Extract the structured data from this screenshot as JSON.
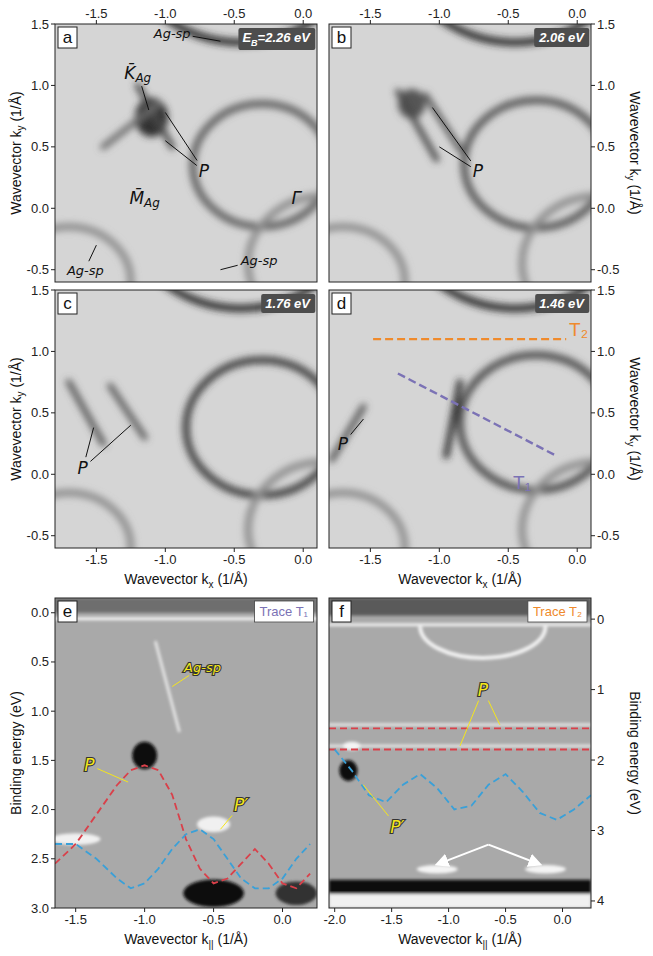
{
  "chart_data": [
    {
      "type": "map",
      "panel": "a",
      "energy_label": [
        "E",
        {
          "sub": "B"
        },
        "=2.26 eV"
      ],
      "xlim": [
        -1.8,
        0.1
      ],
      "ylim": [
        -0.6,
        1.5
      ],
      "xticks": [
        -1.5,
        {
          "value": -1.0,
          "label": "-1.0"
        },
        -0.5,
        {
          "value": 0.0,
          "label": "0.0"
        }
      ],
      "yticks": [
        -0.5,
        {
          "value": 0.0,
          "label": "0.0"
        },
        0.5,
        {
          "value": 1.0,
          "label": "1.0"
        },
        1.5
      ],
      "ylabel": [
        "Wavevector k",
        {
          "sub": "y"
        },
        " (1/Å)"
      ],
      "features": [
        {
          "shape": "circle",
          "cx": -0.3,
          "cy": 0.35,
          "r": 0.5,
          "color": "#5e5e5e"
        },
        {
          "shape": "circle",
          "cx": -0.45,
          "cy": 2.2,
          "r": 0.85,
          "color": "#262626"
        },
        {
          "shape": "circle",
          "cx": -1.7,
          "cy": -0.6,
          "r": 0.45,
          "color": "#8c8c8c"
        },
        {
          "shape": "circle",
          "cx": 0.15,
          "cy": -0.45,
          "r": 0.55,
          "color": "#8c8c8c"
        },
        {
          "shape": "blob",
          "cx": -1.1,
          "cy": 0.74,
          "rx": 0.12,
          "ry": 0.16,
          "color": "#333333"
        },
        {
          "shape": "line",
          "x1": -1.2,
          "y1": 1.0,
          "x2": -0.95,
          "y2": 0.5,
          "color": "#4a4a4a"
        },
        {
          "shape": "line",
          "x1": -1.45,
          "y1": 0.5,
          "x2": -1.05,
          "y2": 0.85,
          "color": "#6a6a6a"
        }
      ],
      "annotations": [
        {
          "text": [
            "Ag-sp"
          ],
          "at": [
            -0.95,
            1.43
          ],
          "to": [
            [
              -0.6,
              1.36
            ]
          ]
        },
        {
          "text": [
            "K̄",
            {
              "sub": "Ag"
            }
          ],
          "at": [
            -1.2,
            1.1
          ],
          "to": [
            [
              -1.12,
              0.8
            ]
          ]
        },
        {
          "text": [
            "P"
          ],
          "at": [
            -0.72,
            0.3
          ],
          "to": [
            [
              -1.0,
              0.78
            ],
            [
              -1.0,
              0.55
            ]
          ]
        },
        {
          "text": [
            "M̄",
            {
              "sub": "Ag"
            }
          ],
          "at": [
            -1.15,
            0.08
          ],
          "to": []
        },
        {
          "text": [
            "Γ̄"
          ],
          "at": [
            -0.05,
            0.08
          ],
          "to": []
        },
        {
          "text": [
            "Ag-sp"
          ],
          "at": [
            -1.58,
            -0.5
          ],
          "to": [
            [
              -1.5,
              -0.3
            ]
          ]
        },
        {
          "text": [
            "Ag-sp"
          ],
          "at": [
            -0.32,
            -0.42
          ],
          "to": [
            [
              -0.6,
              -0.5
            ]
          ]
        }
      ]
    },
    {
      "type": "map",
      "panel": "b",
      "energy_label": [
        "2.06 eV"
      ],
      "xlim": [
        -1.8,
        0.1
      ],
      "ylim": [
        -0.6,
        1.5
      ],
      "xticks": [
        -1.5,
        {
          "value": -1.0,
          "label": "-1.0"
        },
        -0.5,
        {
          "value": 0.0,
          "label": "0.0"
        }
      ],
      "yticks": [
        -0.5,
        {
          "value": 0.0,
          "label": "0.0"
        },
        0.5,
        {
          "value": 1.0,
          "label": "1.0"
        },
        1.5
      ],
      "ylabel": [
        "Wavevector k",
        {
          "sub": "y"
        },
        " (1/Å)"
      ],
      "features": [
        {
          "shape": "circle",
          "cx": -0.3,
          "cy": 0.36,
          "r": 0.52,
          "color": "#555555"
        },
        {
          "shape": "circle",
          "cx": -0.45,
          "cy": 2.2,
          "r": 0.85,
          "color": "#262626"
        },
        {
          "shape": "circle",
          "cx": -1.7,
          "cy": -0.6,
          "r": 0.45,
          "color": "#8c8c8c"
        },
        {
          "shape": "circle",
          "cx": 0.15,
          "cy": -0.45,
          "r": 0.55,
          "color": "#8c8c8c"
        },
        {
          "shape": "blob",
          "cx": -1.2,
          "cy": 0.85,
          "rx": 0.1,
          "ry": 0.12,
          "color": "#555555"
        },
        {
          "shape": "line",
          "x1": -1.3,
          "y1": 0.95,
          "x2": -1.02,
          "y2": 0.4,
          "color": "#4a4a4a"
        },
        {
          "shape": "line",
          "x1": -1.1,
          "y1": 0.92,
          "x2": -0.85,
          "y2": 0.48,
          "color": "#5a5a5a"
        }
      ],
      "annotations": [
        {
          "text": [
            "P"
          ],
          "at": [
            -0.72,
            0.3
          ],
          "to": [
            [
              -1.05,
              0.82
            ],
            [
              -1.0,
              0.5
            ]
          ]
        }
      ]
    },
    {
      "type": "map",
      "panel": "c",
      "energy_label": [
        "1.76 eV"
      ],
      "xlim": [
        -1.8,
        0.1
      ],
      "ylim": [
        -0.6,
        1.5
      ],
      "xticks": [
        -1.5,
        {
          "value": -1.0,
          "label": "-1.0"
        },
        -0.5,
        {
          "value": 0.0,
          "label": "0.0"
        }
      ],
      "yticks": [
        -0.5,
        {
          "value": 0.0,
          "label": "0.0"
        },
        0.5,
        {
          "value": 1.0,
          "label": "1.0"
        },
        1.5
      ],
      "xlabel": [
        "Wavevector k",
        {
          "sub": "x"
        },
        " (1/Å)"
      ],
      "ylabel": [
        "Wavevector k",
        {
          "sub": "y"
        },
        " (1/Å)"
      ],
      "features": [
        {
          "shape": "circle",
          "cx": -0.3,
          "cy": 0.38,
          "r": 0.55,
          "color": "#3a3a3a"
        },
        {
          "shape": "circle",
          "cx": -0.45,
          "cy": 2.2,
          "r": 0.85,
          "color": "#262626"
        },
        {
          "shape": "circle",
          "cx": -1.7,
          "cy": -0.6,
          "r": 0.45,
          "color": "#8c8c8c"
        },
        {
          "shape": "circle",
          "cx": 0.15,
          "cy": -0.45,
          "r": 0.55,
          "color": "#8c8c8c"
        },
        {
          "shape": "line",
          "x1": -1.7,
          "y1": 0.75,
          "x2": -1.45,
          "y2": 0.25,
          "color": "#555555"
        },
        {
          "shape": "line",
          "x1": -1.4,
          "y1": 0.72,
          "x2": -1.15,
          "y2": 0.3,
          "color": "#5a5a5a"
        }
      ],
      "annotations": [
        {
          "text": [
            "P"
          ],
          "at": [
            -1.6,
            0.05
          ],
          "to": [
            [
              -1.52,
              0.38
            ],
            [
              -1.25,
              0.4
            ]
          ]
        }
      ]
    },
    {
      "type": "map",
      "panel": "d",
      "energy_label": [
        "1.46 eV"
      ],
      "xlim": [
        -1.8,
        0.1
      ],
      "ylim": [
        -0.6,
        1.5
      ],
      "xticks": [
        -1.5,
        {
          "value": -1.0,
          "label": "-1.0"
        },
        -0.5,
        {
          "value": 0.0,
          "label": "0.0"
        }
      ],
      "yticks": [
        -0.5,
        {
          "value": 0.0,
          "label": "0.0"
        },
        0.5,
        {
          "value": 1.0,
          "label": "1.0"
        },
        1.5
      ],
      "xlabel": [
        "Wavevector k",
        {
          "sub": "x"
        },
        " (1/Å)"
      ],
      "ylabel": [
        "Wavevector k",
        {
          "sub": "y"
        },
        " (1/Å)"
      ],
      "features": [
        {
          "shape": "circle",
          "cx": -0.3,
          "cy": 0.42,
          "r": 0.55,
          "color": "#4a4a4a"
        },
        {
          "shape": "circle",
          "cx": -0.45,
          "cy": 2.2,
          "r": 0.85,
          "color": "#262626"
        },
        {
          "shape": "circle",
          "cx": -1.7,
          "cy": -0.6,
          "r": 0.45,
          "color": "#8c8c8c"
        },
        {
          "shape": "circle",
          "cx": 0.15,
          "cy": -0.45,
          "r": 0.55,
          "color": "#8c8c8c"
        },
        {
          "shape": "line",
          "x1": -1.78,
          "y1": 0.12,
          "x2": -1.55,
          "y2": 0.55,
          "color": "#555555"
        },
        {
          "shape": "line",
          "x1": -0.95,
          "y1": 0.15,
          "x2": -0.85,
          "y2": 0.75,
          "color": "#2a2a2a"
        }
      ],
      "traces": [
        {
          "label": "T₁",
          "color": "#7b72b5",
          "line_style": "dashed",
          "x": [
            -1.3,
            -0.15
          ],
          "y": [
            0.82,
            0.15
          ],
          "label_at": [
            -0.4,
            -0.07
          ]
        },
        {
          "label": "T₂",
          "color": "#ef8a2c",
          "line_style": "dashed",
          "x": [
            -1.48,
            -0.08
          ],
          "y": [
            1.1,
            1.1
          ],
          "label_at": [
            0.01,
            1.18
          ]
        }
      ],
      "annotations": [
        {
          "text": [
            "P"
          ],
          "at": [
            -1.7,
            0.25
          ],
          "to": [
            [
              -1.55,
              0.45
            ]
          ]
        }
      ]
    },
    {
      "type": "trace",
      "panel": "e",
      "title": "Trace T₁",
      "color": "#7b72b5",
      "xlim": [
        -1.65,
        0.25
      ],
      "ylim": [
        3.0,
        -0.15
      ],
      "xticks": [
        -1.5,
        {
          "value": -1.0,
          "label": "-1.0"
        },
        -0.5,
        {
          "value": 0.0,
          "label": "0.0"
        }
      ],
      "yticks": [
        {
          "value": 0.0,
          "label": "0.0"
        },
        0.5,
        {
          "value": 1.0,
          "label": "1.0"
        },
        1.5,
        {
          "value": 2.0,
          "label": "2.0"
        },
        2.5,
        {
          "value": 3.0,
          "label": "3.0"
        }
      ],
      "xlabel": [
        "Wavevector k",
        {
          "sub": "||"
        },
        " (1/Å)"
      ],
      "ylabel": [
        "Binding energy (eV)"
      ],
      "series": [
        {
          "color": "#d9404a",
          "line_style": "dashed",
          "x": [
            -1.65,
            -1.5,
            -1.35,
            -1.2,
            -1.1,
            -1.0,
            -0.9,
            -0.8,
            -0.7,
            -0.6,
            -0.5,
            -0.4,
            -0.3,
            -0.2,
            -0.1,
            0.0,
            0.1,
            0.2
          ],
          "values": [
            2.55,
            2.35,
            2.05,
            1.75,
            1.6,
            1.55,
            1.6,
            1.85,
            2.3,
            2.6,
            2.75,
            2.7,
            2.55,
            2.4,
            2.55,
            2.75,
            2.8,
            2.65
          ]
        },
        {
          "color": "#3aa0d8",
          "line_style": "dashed",
          "x": [
            -1.65,
            -1.5,
            -1.35,
            -1.2,
            -1.1,
            -1.0,
            -0.9,
            -0.8,
            -0.7,
            -0.6,
            -0.5,
            -0.4,
            -0.3,
            -0.2,
            -0.1,
            0.0,
            0.1,
            0.2
          ],
          "values": [
            2.35,
            2.35,
            2.5,
            2.7,
            2.8,
            2.75,
            2.6,
            2.4,
            2.25,
            2.2,
            2.3,
            2.5,
            2.7,
            2.8,
            2.8,
            2.7,
            2.5,
            2.35
          ]
        }
      ],
      "features": [
        {
          "shape": "rect",
          "x1": -1.65,
          "y1": -0.15,
          "x2": 0.25,
          "y2": 0.0,
          "color": "#6e6e6e"
        },
        {
          "shape": "line",
          "x1": -1.65,
          "y1": 0.06,
          "x2": 0.25,
          "y2": 0.06,
          "color": "#f4f4f4"
        },
        {
          "shape": "line",
          "x1": -0.92,
          "y1": 0.3,
          "x2": -0.75,
          "y2": 1.2,
          "color": "#e4e4e4"
        },
        {
          "shape": "blob",
          "cx": -1.0,
          "cy": 1.45,
          "rx": 0.09,
          "ry": 0.14,
          "color": "#0a0a0a"
        },
        {
          "shape": "blob",
          "cx": -0.5,
          "cy": 2.85,
          "rx": 0.22,
          "ry": 0.14,
          "color": "#111111"
        },
        {
          "shape": "blob",
          "cx": 0.1,
          "cy": 2.85,
          "rx": 0.15,
          "ry": 0.12,
          "color": "#333333"
        },
        {
          "shape": "blob",
          "cx": -1.5,
          "cy": 2.3,
          "rx": 0.18,
          "ry": 0.06,
          "color": "#f0f0f0"
        },
        {
          "shape": "blob",
          "cx": -0.5,
          "cy": 2.15,
          "rx": 0.12,
          "ry": 0.08,
          "color": "#f0f0f0"
        }
      ],
      "annotations": [
        {
          "text": [
            "Ag-sp"
          ],
          "at": [
            -0.58,
            0.55
          ],
          "to": [
            [
              -0.8,
              0.75
            ]
          ]
        },
        {
          "text": [
            "P"
          ],
          "at": [
            -1.4,
            1.55
          ],
          "to": [
            [
              -1.12,
              1.72
            ]
          ]
        },
        {
          "text": [
            "P′"
          ],
          "at": [
            -0.3,
            1.95
          ],
          "to": [
            [
              -0.45,
              2.2
            ]
          ]
        }
      ]
    },
    {
      "type": "trace",
      "panel": "f",
      "title": "Trace T₂",
      "color": "#ef8a2c",
      "xlim": [
        -2.05,
        0.25
      ],
      "ylim": [
        4.1,
        -0.3
      ],
      "xticks": [
        {
          "value": -2.0,
          "label": "-2.0"
        },
        -1.5,
        {
          "value": -1.0,
          "label": "-1.0"
        },
        -0.5,
        {
          "value": 0.0,
          "label": "0.0"
        }
      ],
      "yticks": [
        0,
        1,
        2,
        3,
        4
      ],
      "xlabel": [
        "Wavevector k",
        {
          "sub": "||"
        },
        " (1/Å)"
      ],
      "ylabel": [
        "Binding energy (eV)"
      ],
      "series": [
        {
          "color": "#d9404a",
          "line_style": "dashed",
          "x": [
            -2.05,
            0.25
          ],
          "values": [
            1.55,
            1.55
          ]
        },
        {
          "color": "#d9404a",
          "line_style": "dashed",
          "x": [
            -2.05,
            0.25
          ],
          "values": [
            1.85,
            1.85
          ]
        },
        {
          "color": "#3aa0d8",
          "line_style": "dashed",
          "x": [
            -2.0,
            -1.85,
            -1.7,
            -1.55,
            -1.4,
            -1.25,
            -1.1,
            -0.95,
            -0.8,
            -0.65,
            -0.5,
            -0.35,
            -0.2,
            -0.05,
            0.1,
            0.25
          ],
          "values": [
            1.85,
            2.15,
            2.5,
            2.6,
            2.35,
            2.2,
            2.4,
            2.7,
            2.65,
            2.35,
            2.2,
            2.45,
            2.75,
            2.85,
            2.7,
            2.5
          ]
        }
      ],
      "features": [
        {
          "shape": "rect",
          "x1": -2.05,
          "y1": -0.3,
          "x2": 0.25,
          "y2": -0.05,
          "color": "#5a5a5a"
        },
        {
          "shape": "line",
          "x1": -2.05,
          "y1": 0.08,
          "x2": 0.25,
          "y2": 0.08,
          "color": "#efefef"
        },
        {
          "shape": "arc",
          "cx": -0.7,
          "cy": 0.1,
          "rx": 0.55,
          "ry": 0.45,
          "color": "#f2f2f2"
        },
        {
          "shape": "line",
          "x1": -2.05,
          "y1": 1.5,
          "x2": 0.25,
          "y2": 1.5,
          "color": "#e2e2e2"
        },
        {
          "shape": "line",
          "x1": -2.05,
          "y1": 1.8,
          "x2": 0.25,
          "y2": 1.8,
          "color": "#e2e2e2"
        },
        {
          "shape": "blob",
          "cx": -1.88,
          "cy": 2.15,
          "rx": 0.08,
          "ry": 0.15,
          "color": "#111111"
        },
        {
          "shape": "blob",
          "cx": -1.85,
          "cy": 1.8,
          "rx": 0.08,
          "ry": 0.06,
          "color": "#f4f4f4"
        },
        {
          "shape": "rect",
          "x1": -2.05,
          "y1": 3.7,
          "x2": 0.25,
          "y2": 3.9,
          "color": "#101010"
        },
        {
          "shape": "rect",
          "x1": -2.05,
          "y1": 3.9,
          "x2": 0.25,
          "y2": 4.1,
          "color": "#f0f0f0"
        },
        {
          "shape": "blob",
          "cx": -1.1,
          "cy": 3.55,
          "rx": 0.18,
          "ry": 0.06,
          "color": "#f4f4f4"
        },
        {
          "shape": "blob",
          "cx": -0.15,
          "cy": 3.55,
          "rx": 0.18,
          "ry": 0.06,
          "color": "#f4f4f4"
        },
        {
          "shape": "arrow",
          "x1": -0.65,
          "y1": 3.2,
          "x2": -1.1,
          "y2": 3.48,
          "color": "#ffffff"
        },
        {
          "shape": "arrow",
          "x1": -0.65,
          "y1": 3.2,
          "x2": -0.2,
          "y2": 3.48,
          "color": "#ffffff"
        }
      ],
      "annotations": [
        {
          "text": [
            "P"
          ],
          "at": [
            -0.7,
            1.0
          ],
          "to": [
            [
              -0.55,
              1.5
            ],
            [
              -0.9,
              1.8
            ]
          ]
        },
        {
          "text": [
            "P′"
          ],
          "at": [
            -1.45,
            2.95
          ],
          "to": [
            [
              -1.75,
              2.35
            ]
          ]
        }
      ]
    }
  ]
}
